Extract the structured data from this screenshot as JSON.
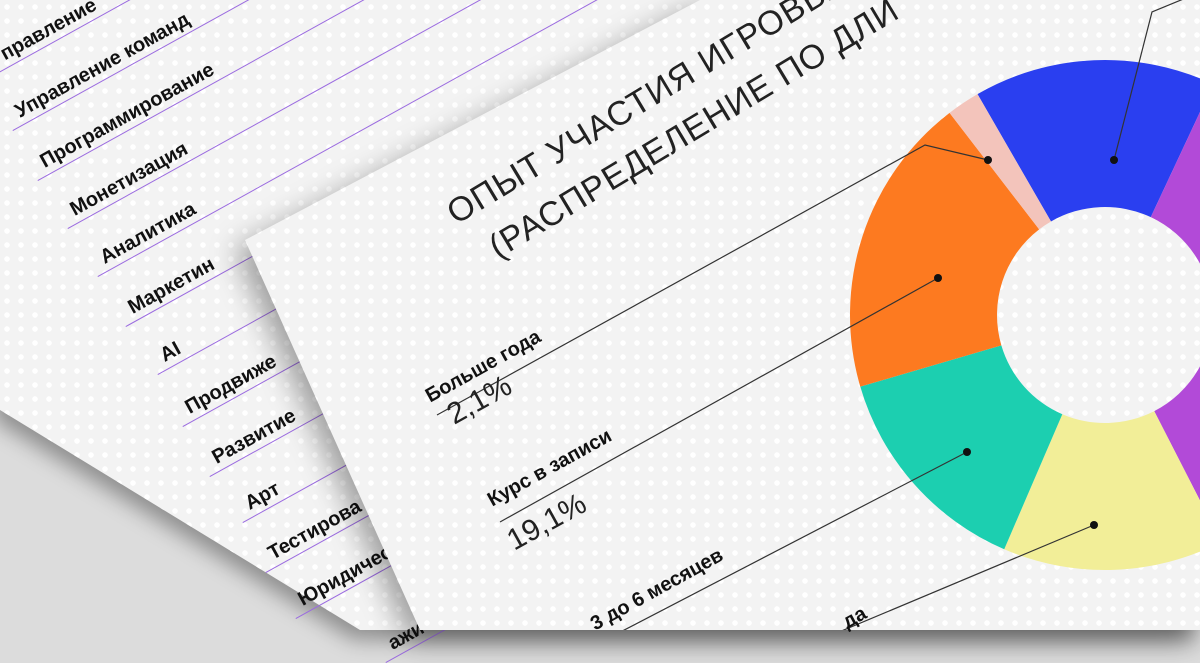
{
  "back_page": {
    "items": [
      "Управление",
      "Управление команд",
      "Программирование",
      "Монетизация",
      "Аналитика",
      "Маркетин",
      "AI",
      "Продвиже",
      "Развитие",
      "Арт",
      "Тестирова",
      "Юридичес",
      "ажи"
    ]
  },
  "front_page": {
    "title_line1": "ОПЫТ УЧАСТИЯ ИГРОВЫ",
    "title_line2": "(РАСПРЕДЕЛЕНИЕ ПО ДЛИ"
  },
  "chart_data": {
    "type": "pie",
    "donut": true,
    "title": "ОПЫТ УЧАСТИЯ ИГРОВЫ (РАСПРЕДЕЛЕНИЕ ПО ДЛИ",
    "labels": [
      {
        "label": "Больше года",
        "value_text": "2,1%"
      },
      {
        "label": "Курс в записи",
        "value_text": "19,1%"
      },
      {
        "label": "3 до 6 месяцев",
        "value_text": ""
      },
      {
        "label": "да",
        "value_text": ""
      }
    ],
    "slices": [
      {
        "name": "",
        "value": 15.3,
        "color": "#2a3ff0"
      },
      {
        "name": "",
        "value": 35.5,
        "color": "#b24ad8"
      },
      {
        "name": "",
        "value": 14.0,
        "color": "#f2ee98"
      },
      {
        "name": "",
        "value": 14.0,
        "color": "#1ccfb0"
      },
      {
        "name": "Курс в записи",
        "value": 19.1,
        "color": "#fd7a20"
      },
      {
        "name": "Больше года",
        "value": 2.1,
        "color": "#f3c4bb"
      }
    ]
  },
  "colors": {
    "list_rule": "#9b6be0",
    "leader": "#333333"
  }
}
